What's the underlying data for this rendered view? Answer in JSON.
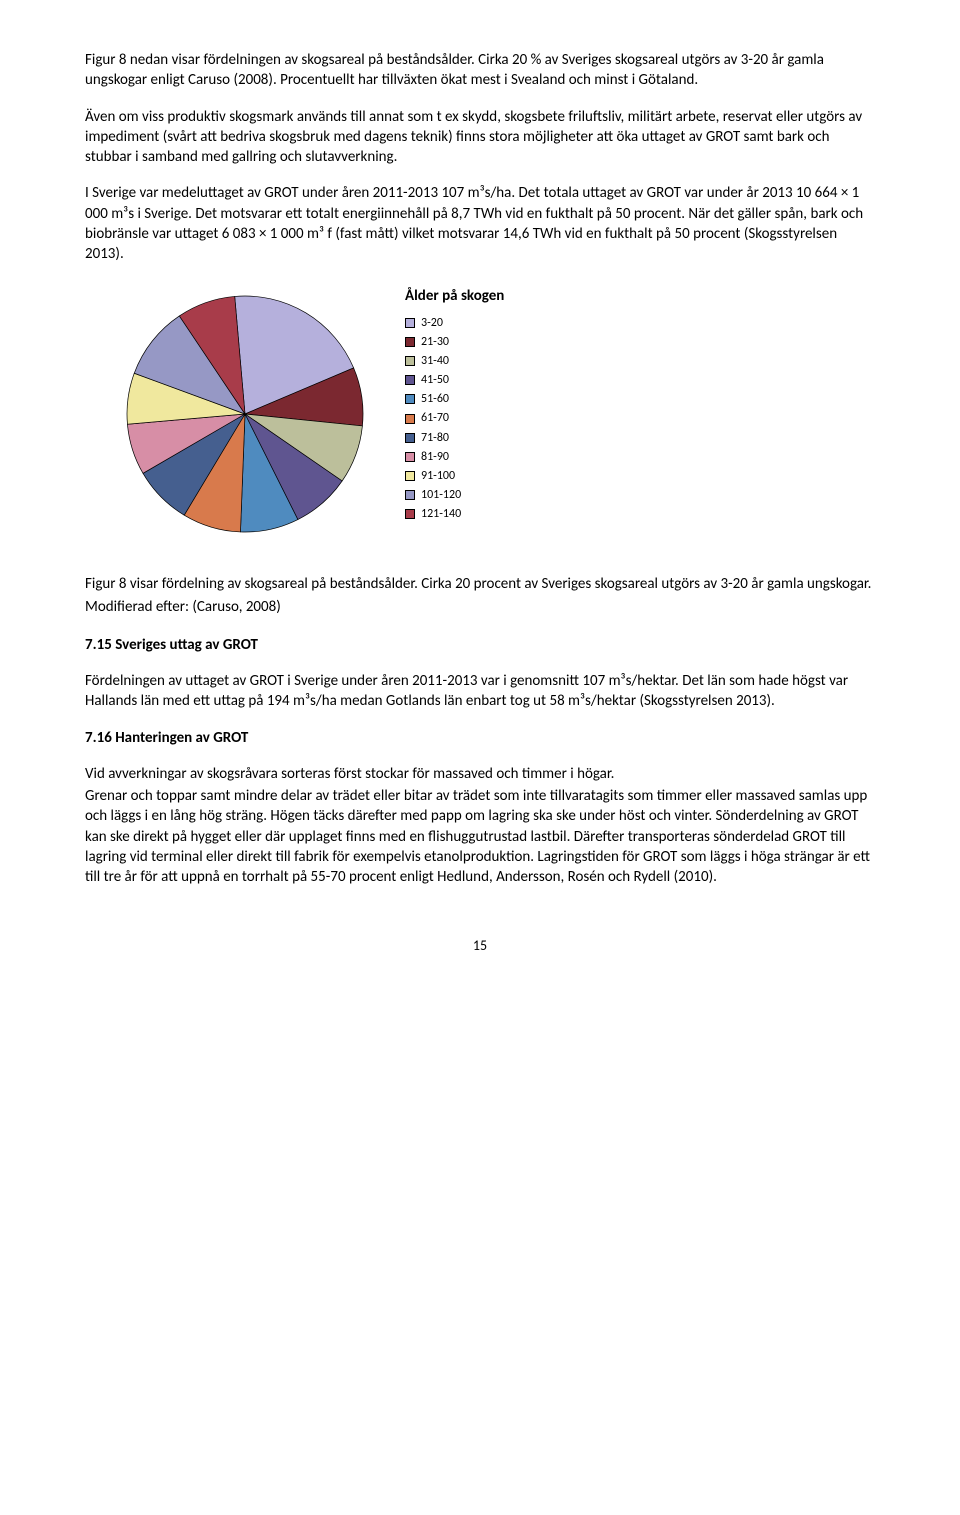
{
  "para1": "Figur 8 nedan visar fördelningen av skogsareal på beståndsålder. Cirka 20 % av Sveriges skogsareal utgörs av 3-20 år gamla ungskogar enligt Caruso (2008). Procentuellt har tillväxten ökat mest i Svealand och minst i Götaland.",
  "para2": "Även om viss produktiv skogsmark används till annat som t ex skydd, skogsbete friluftsliv, militärt arbete, reservat eller utgörs av impediment (svårt att bedriva skogsbruk med dagens teknik) finns stora möjligheter att öka uttaget av GROT samt bark och stubbar i samband med gallring och slutavverkning.",
  "para3": "I Sverige var medeluttaget av GROT under åren 2011-2013 107 m³s/ha. Det totala uttaget av GROT var under år 2013 10 664 × 1 000 m³s i Sverige. Det motsvarar ett totalt energiinnehåll på 8,7 TWh vid en fukthalt på 50 procent. När det gäller spån, bark och biobränsle var uttaget 6 083 × 1 000 m³ f (fast mått) vilket motsvarar 14,6 TWh vid en fukthalt på 50 procent (Skogsstyrelsen 2013).",
  "chart": {
    "title": "Ålder på skogen",
    "slices": [
      {
        "label": "3-20",
        "value": 20,
        "color": "#b5b0dc"
      },
      {
        "label": "21-30",
        "value": 8,
        "color": "#7b2830"
      },
      {
        "label": "31-40",
        "value": 8,
        "color": "#bcbf9b"
      },
      {
        "label": "41-50",
        "value": 8,
        "color": "#5f5590"
      },
      {
        "label": "51-60",
        "value": 8,
        "color": "#4f8bbf"
      },
      {
        "label": "61-70",
        "value": 8,
        "color": "#d87a4c"
      },
      {
        "label": "71-80",
        "value": 8,
        "color": "#455f8f"
      },
      {
        "label": "81-90",
        "value": 7,
        "color": "#d78ea6"
      },
      {
        "label": "91-100",
        "value": 7,
        "color": "#f0e89e"
      },
      {
        "label": "101-120",
        "value": 10,
        "color": "#9698c5"
      },
      {
        "label": "121-140",
        "value": 8,
        "color": "#a83c4a"
      }
    ],
    "size": 240,
    "startAngle": -95,
    "strokeColor": "#000000",
    "strokeWidth": 0.7,
    "legend_swatch_border": "#000000",
    "legend_fontsize": 12,
    "title_fontsize": 15
  },
  "caption1": "Figur 8 visar fördelning av skogsareal på beståndsålder. Cirka 20 procent av Sveriges skogsareal utgörs av 3-20 år gamla ungskogar.",
  "caption2": "Modifierad efter: (Caruso, 2008)",
  "section715": "7.15 Sveriges uttag av GROT",
  "para715": "Fördelningen av uttaget av GROT i Sverige under åren 2011-2013 var i genomsnitt 107 m³s/hektar. Det län som hade högst var Hallands län med ett uttag på 194 m³s/ha medan Gotlands län enbart tog ut 58 m³s/hektar (Skogsstyrelsen 2013).",
  "section716": "7.16 Hanteringen av GROT",
  "para716a": "Vid avverkningar av skogsråvara sorteras först stockar för massaved och timmer i högar.",
  "para716b": "Grenar och toppar samt mindre delar av trädet eller bitar av trädet som inte tillvaratagits som timmer eller massaved samlas upp och läggs i en lång hög sträng. Högen täcks därefter med papp om lagring ska ske under höst och vinter. Sönderdelning av GROT kan ske direkt på hygget eller där upplaget finns med en flishuggutrustad lastbil. Därefter transporteras sönderdelad GROT till lagring vid terminal eller direkt till fabrik för exempelvis etanolproduktion. Lagringstiden för GROT som läggs i höga strängar är ett till tre år för att uppnå en torrhalt på 55-70 procent enligt Hedlund, Andersson, Rosén och Rydell (2010).",
  "pageNumber": "15"
}
